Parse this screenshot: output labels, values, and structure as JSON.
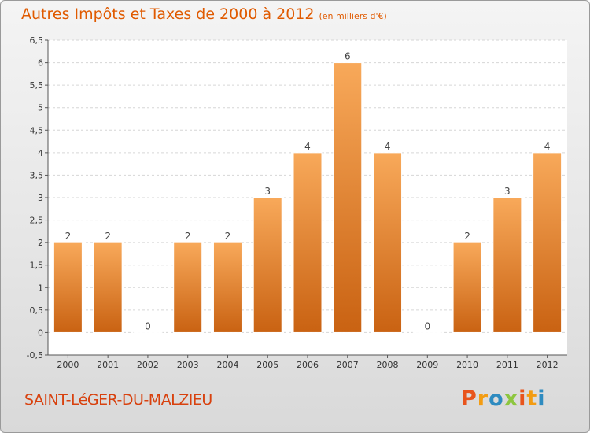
{
  "header": {
    "title": "Autres Impôts et Taxes de 2000 à 2012",
    "subtitle": "(en milliers d'€)"
  },
  "footer": {
    "commune": "SAINT-LéGER-DU-MALZIEU",
    "logo": "Proxiti",
    "logo_colors": [
      "#e8541c",
      "#f39c12",
      "#2e8bc0",
      "#8dc63f"
    ]
  },
  "colors": {
    "bar_light": "#f8a95a",
    "bar_dark": "#c96212",
    "accent": "#e05a00"
  },
  "chart_data": {
    "type": "bar",
    "title": "Autres Impôts et Taxes de 2000 à 2012",
    "subtitle": "(en milliers d'€)",
    "xlabel": "",
    "ylabel": "",
    "categories": [
      "2000",
      "2001",
      "2002",
      "2003",
      "2004",
      "2005",
      "2006",
      "2007",
      "2008",
      "2009",
      "2010",
      "2011",
      "2012"
    ],
    "values": [
      2,
      2,
      0,
      2,
      2,
      3,
      4,
      6,
      4,
      0,
      2,
      3,
      4
    ],
    "ylim": [
      -0.5,
      6.5
    ],
    "yticks": [
      "-0,5",
      "0",
      "0,5",
      "1",
      "1,5",
      "2",
      "2,5",
      "3",
      "3,5",
      "4",
      "4,5",
      "5",
      "5,5",
      "6",
      "6,5"
    ],
    "grid": true
  }
}
